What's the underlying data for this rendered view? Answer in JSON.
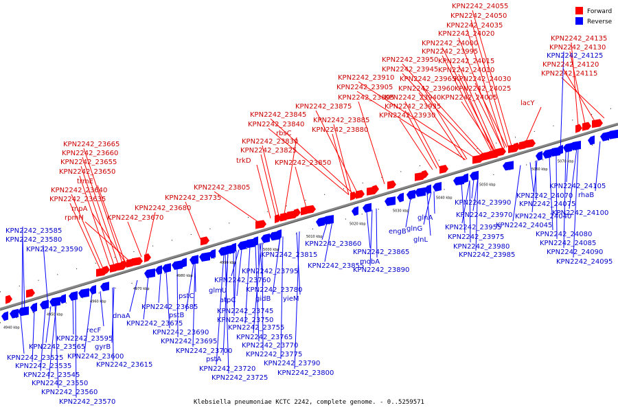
{
  "caption": "Klebsiella pneumoniae KCTC 2242, complete genome. - 0..5259571",
  "legend": [
    {
      "label": "Forward",
      "color": "#ff0000"
    },
    {
      "label": "Reverse",
      "color": "#0000ff"
    }
  ],
  "ticks": [
    "4940 kbp",
    "4950 kbp",
    "4960 kbp",
    "4970 kbp",
    "4980 kbp",
    "4990 kbp",
    "5000 kbp",
    "5010 kbp",
    "5020 kbp",
    "5030 kbp",
    "5040 kbp",
    "5050 kbp",
    "5060 kbp",
    "5070 kbp"
  ],
  "forward_labels": [
    "KPN2242_24055",
    "KPN2242_24050",
    "KPN2242_24035",
    "KPN2242_24020",
    "KPN2242_24000",
    "KPN2242_23995",
    "KPN2242_24015",
    "KPN2242_23950",
    "KPN2242_24010",
    "KPN2242_23945",
    "KPN2242_23910",
    "KPN2242_23965",
    "KPN2242_24030",
    "KPN2242_23905",
    "KPN2242_23960",
    "KPN2242_24025",
    "KPN2242_23895",
    "KPN2242_23940",
    "KPN2242_24005",
    "KPN2242_23875",
    "KPN2242_23935",
    "KPN2242_23845",
    "KPN2242_23930",
    "KPN2242_23840",
    "KPN2242_23885",
    "KPN2242_23880",
    "rbsC",
    "KPN2242_23830",
    "KPN2242_23825",
    "trkD",
    "KPN2242_23850",
    "KPN2242_23665",
    "KPN2242_23660",
    "KPN2242_23655",
    "KPN2242_23650",
    "trmE",
    "KPN2242_23640",
    "KPN2242_23635",
    "rnpA",
    "rpmH",
    "KPN2242_23805",
    "KPN2242_23735",
    "KPN2242_23680",
    "KPN2242_23670",
    "lacY",
    "KPN2242_24135",
    "KPN2242_24130",
    "KPN2242_24120",
    "KPN2242_24115"
  ],
  "reverse_labels": [
    "KPN2242_24125",
    "KPN2242_23585",
    "KPN2242_23580",
    "KPN2242_23590",
    "dnaA",
    "recF",
    "KPN2242_23595",
    "gyrB",
    "KPN2242_23565",
    "KPN2242_23600",
    "KPN2242_23525",
    "KPN2242_23615",
    "KPN2242_23535",
    "KPN2242_23545",
    "KPN2242_23550",
    "KPN2242_23560",
    "KPN2242_23570",
    "KPN2242_23685",
    "KPN2242_23675",
    "pstB",
    "KPN2242_23690",
    "KPN2242_23695",
    "KPN2242_23700",
    "pstA",
    "KPN2242_23720",
    "KPN2242_23725",
    "pstC",
    "glmU",
    "atpC",
    "KPN2242_23760",
    "KPN2242_23780",
    "KPN2242_23745",
    "KPN2242_23750",
    "KPN2242_23755",
    "KPN2242_23765",
    "KPN2242_23770",
    "KPN2242_23775",
    "KPN2242_23790",
    "KPN2242_23800",
    "gidB",
    "yieM",
    "KPN2242_23795",
    "KPN2242_23815",
    "KPN2242_23860",
    "KPN2242_23855",
    "KPN2242_23865",
    "mobA",
    "KPN2242_23890",
    "engB",
    "glnG",
    "glnL",
    "glnA",
    "KPN2242_23990",
    "KPN2242_23970",
    "KPN2242_23955",
    "KPN2242_23975",
    "KPN2242_23980",
    "KPN2242_23985",
    "KPN2242_24040",
    "KPN2242_24045",
    "KPN2242_24070",
    "KPN2242_24075",
    "KPN2242_24105",
    "rhaB",
    "KPN2242_24100",
    "KPN2242_24080",
    "KPN2242_24085",
    "KPN2242_24090",
    "KPN2242_24095"
  ]
}
